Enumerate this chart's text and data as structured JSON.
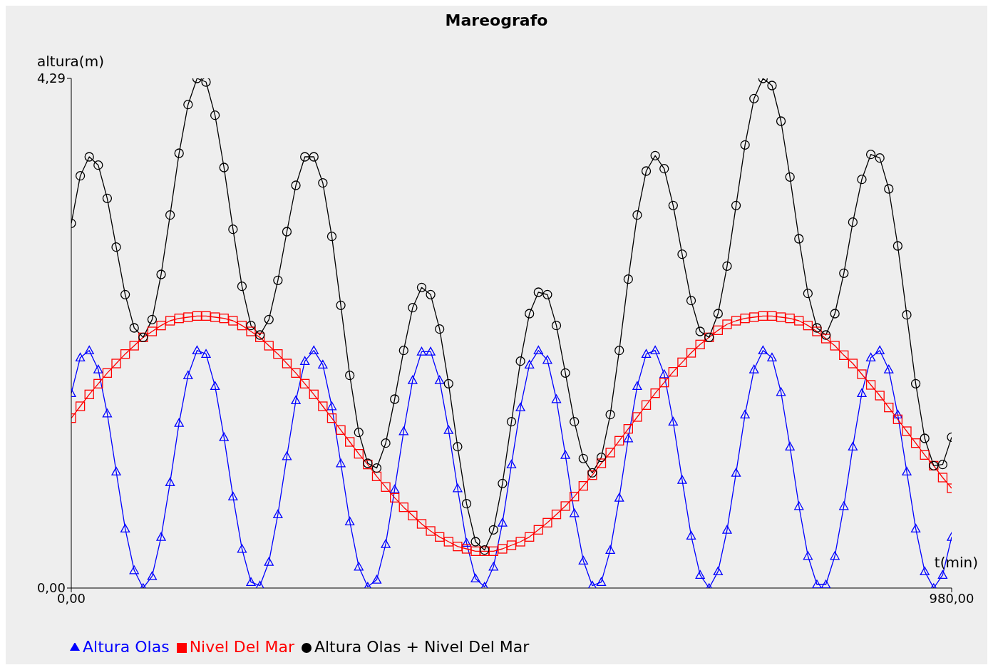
{
  "chart_data": {
    "type": "line",
    "title": "Mareografo",
    "xlabel": "t(min)",
    "ylabel": "altura(m)",
    "x": [
      0,
      10,
      20,
      30,
      40,
      50,
      60,
      70,
      80,
      90,
      100,
      110,
      120,
      130,
      140,
      150,
      160,
      170,
      180,
      190,
      200,
      210,
      220,
      230,
      240,
      250,
      260,
      270,
      280,
      290,
      300,
      310,
      320,
      330,
      340,
      350,
      360,
      370,
      380,
      390,
      400,
      410,
      420,
      430,
      440,
      450,
      460,
      470,
      480,
      490,
      500,
      510,
      520,
      530,
      540,
      550,
      560,
      570,
      580,
      590,
      600,
      610,
      620,
      630,
      640,
      650,
      660,
      670,
      680,
      690,
      700,
      710,
      720,
      730,
      740,
      750,
      760,
      770,
      780,
      790,
      800,
      810,
      820,
      830,
      840,
      850,
      860,
      870,
      880,
      890,
      900,
      910,
      920,
      930,
      940,
      950,
      960,
      970,
      980
    ],
    "xlim": [
      0,
      980
    ],
    "xticks": [
      {
        "value": 0,
        "label": "0,00"
      },
      {
        "value": 980,
        "label": "980,00"
      }
    ],
    "ylim": [
      0,
      4.29
    ],
    "yticks": [
      {
        "value": 0,
        "label": "0,00"
      },
      {
        "value": 4.29,
        "label": "4,29"
      }
    ],
    "legend": "bottom",
    "series": [
      {
        "name": "Altura Olas",
        "color": "#0000ff",
        "marker": "triangle",
        "values": [
          1.64,
          1.94,
          2.0,
          1.84,
          1.47,
          0.98,
          0.5,
          0.15,
          0.0,
          0.1,
          0.43,
          0.89,
          1.39,
          1.79,
          2.0,
          1.97,
          1.7,
          1.27,
          0.77,
          0.33,
          0.05,
          0.02,
          0.22,
          0.62,
          1.11,
          1.58,
          1.91,
          2.0,
          1.88,
          1.53,
          1.05,
          0.56,
          0.18,
          0.01,
          0.07,
          0.37,
          0.83,
          1.32,
          1.75,
          1.99,
          1.99,
          1.75,
          1.33,
          0.84,
          0.38,
          0.08,
          0.01,
          0.18,
          0.55,
          1.04,
          1.52,
          1.88,
          2.0,
          1.92,
          1.59,
          1.12,
          0.63,
          0.23,
          0.02,
          0.05,
          0.32,
          0.76,
          1.26,
          1.7,
          1.97,
          2.0,
          1.8,
          1.4,
          0.91,
          0.44,
          0.11,
          0.0,
          0.14,
          0.49,
          0.97,
          1.46,
          1.84,
          2.0,
          1.94,
          1.65,
          1.19,
          0.69,
          0.27,
          0.03,
          0.03,
          0.27,
          0.69,
          1.19,
          1.64,
          1.94,
          2.0,
          1.84,
          1.46,
          0.98,
          0.5,
          0.14,
          0.0,
          0.11,
          0.43
        ]
      },
      {
        "name": "Nivel Del Mar",
        "color": "#ff0000",
        "marker": "square",
        "values": [
          1.43,
          1.53,
          1.63,
          1.72,
          1.81,
          1.89,
          1.97,
          2.04,
          2.11,
          2.16,
          2.21,
          2.25,
          2.27,
          2.28,
          2.29,
          2.29,
          2.28,
          2.27,
          2.25,
          2.21,
          2.16,
          2.11,
          2.04,
          1.97,
          1.89,
          1.81,
          1.72,
          1.63,
          1.53,
          1.43,
          1.33,
          1.23,
          1.13,
          1.04,
          0.94,
          0.85,
          0.76,
          0.68,
          0.61,
          0.54,
          0.48,
          0.43,
          0.39,
          0.35,
          0.33,
          0.31,
          0.31,
          0.31,
          0.33,
          0.36,
          0.39,
          0.43,
          0.49,
          0.55,
          0.62,
          0.69,
          0.77,
          0.86,
          0.95,
          1.05,
          1.14,
          1.24,
          1.34,
          1.44,
          1.54,
          1.64,
          1.73,
          1.82,
          1.9,
          1.98,
          2.05,
          2.11,
          2.17,
          2.22,
          2.25,
          2.27,
          2.28,
          2.29,
          2.29,
          2.28,
          2.27,
          2.25,
          2.21,
          2.16,
          2.1,
          2.04,
          1.96,
          1.89,
          1.8,
          1.71,
          1.62,
          1.52,
          1.42,
          1.32,
          1.22,
          1.12,
          1.03,
          0.93,
          0.84
        ]
      },
      {
        "name": "Altura Olas + Nivel Del Mar",
        "color": "#000000",
        "marker": "circle",
        "values": [
          3.07,
          3.47,
          3.63,
          3.56,
          3.28,
          2.87,
          2.47,
          2.19,
          2.11,
          2.26,
          2.64,
          3.14,
          3.66,
          4.07,
          4.29,
          4.26,
          3.98,
          3.54,
          3.02,
          2.54,
          2.21,
          2.13,
          2.26,
          2.59,
          3.0,
          3.39,
          3.63,
          3.63,
          3.41,
          2.96,
          2.38,
          1.79,
          1.31,
          1.05,
          1.01,
          1.22,
          1.59,
          2.0,
          2.36,
          2.53,
          2.47,
          2.18,
          1.72,
          1.19,
          0.71,
          0.39,
          0.32,
          0.49,
          0.88,
          1.4,
          1.91,
          2.31,
          2.49,
          2.47,
          2.21,
          1.81,
          1.4,
          1.09,
          0.97,
          1.1,
          1.46,
          2.0,
          2.6,
          3.14,
          3.51,
          3.64,
          3.53,
          3.22,
          2.81,
          2.42,
          2.16,
          2.11,
          2.31,
          2.71,
          3.22,
          3.73,
          4.12,
          4.29,
          4.23,
          3.93,
          3.46,
          2.94,
          2.48,
          2.19,
          2.13,
          2.31,
          2.65,
          3.08,
          3.44,
          3.65,
          3.62,
          3.36,
          2.88,
          2.3,
          1.72,
          1.26,
          1.03,
          1.04,
          1.27
        ]
      }
    ]
  }
}
